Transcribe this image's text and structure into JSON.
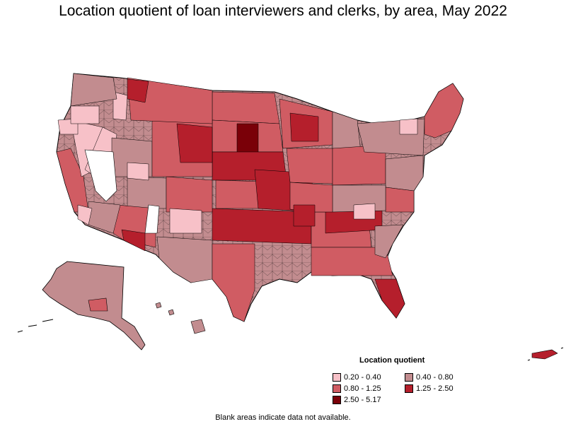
{
  "title": "Location quotient of loan interviewers and clerks, by area, May 2022",
  "legend": {
    "title": "Location quotient",
    "items": [
      {
        "label": "0.20 - 0.40",
        "color": "#f7c1c8"
      },
      {
        "label": "0.40 - 0.80",
        "color": "#c28c8f"
      },
      {
        "label": "0.80 - 1.25",
        "color": "#d05c63"
      },
      {
        "label": "1.25 - 2.50",
        "color": "#b51f2c"
      },
      {
        "label": "2.50 - 5.17",
        "color": "#7a0008"
      }
    ]
  },
  "colors": {
    "blank": "#ffffff",
    "border": "#000000"
  },
  "footnote": "Blank areas indicate data not available."
}
